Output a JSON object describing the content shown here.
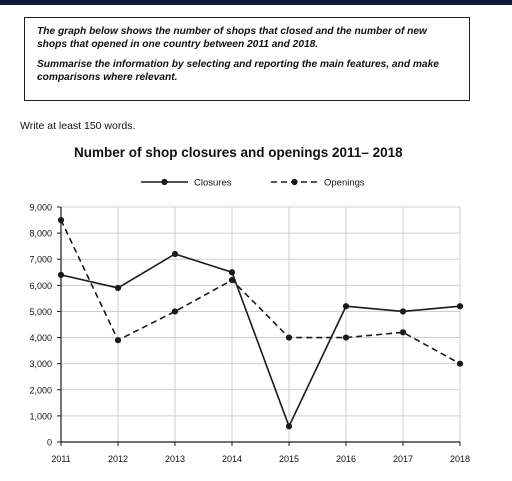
{
  "prompt": {
    "line1": "The graph below shows the number of shops that closed and the number of new shops that opened in one country between 2011 and 2018.",
    "line2": "Summarise the information by selecting and reporting the main features, and make comparisons where relevant."
  },
  "instruction": "Write at least 150 words.",
  "colors": {
    "line": "#1a1a1a",
    "grid": "#cfcfcf",
    "topbar": "#0e1b3d"
  },
  "chart_data": {
    "type": "line",
    "title": "Number of shop closures and openings 2011– 2018",
    "xlabel": "",
    "ylabel": "",
    "x": [
      "2011",
      "2012",
      "2013",
      "2014",
      "2015",
      "2016",
      "2017",
      "2018"
    ],
    "ylim": [
      0,
      9000
    ],
    "yticks": [
      0,
      1000,
      2000,
      3000,
      4000,
      5000,
      6000,
      7000,
      8000,
      9000
    ],
    "ytick_labels": [
      "0",
      "1,000",
      "2,000",
      "3,000",
      "4,000",
      "5,000",
      "6,000",
      "7,000",
      "8,000",
      "9,000"
    ],
    "grid": true,
    "legend": "top-center",
    "series": [
      {
        "name": "Closures",
        "style": "solid",
        "values": [
          6400,
          5900,
          7200,
          6500,
          600,
          5200,
          5000,
          5200
        ]
      },
      {
        "name": "Openings",
        "style": "dashed",
        "values": [
          8500,
          3900,
          5000,
          6200,
          4000,
          4000,
          4200,
          3000
        ]
      }
    ]
  }
}
